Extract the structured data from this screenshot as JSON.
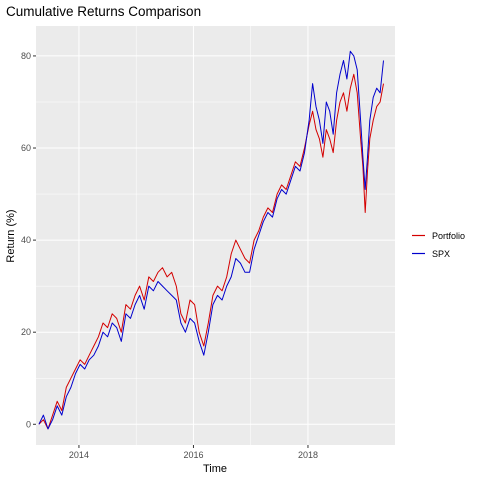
{
  "chart_data": {
    "type": "line",
    "title": "Cumulative Returns Comparison",
    "xlabel": "Time",
    "ylabel": "Return (%)",
    "xlim": [
      2013.25,
      2019.52
    ],
    "ylim": [
      -4.5,
      86.5
    ],
    "x_ticks": [
      2014,
      2016,
      2018
    ],
    "x_tick_labels": [
      "2014",
      "2016",
      "2018"
    ],
    "y_ticks": [
      0,
      20,
      40,
      60,
      80
    ],
    "y_tick_labels": [
      "0",
      "20",
      "40",
      "60",
      "80"
    ],
    "grid": true,
    "legend_position": "right",
    "x": [
      2013.3,
      2013.38,
      2013.46,
      2013.54,
      2013.62,
      2013.7,
      2013.78,
      2013.86,
      2013.94,
      2014.02,
      2014.1,
      2014.18,
      2014.26,
      2014.34,
      2014.42,
      2014.5,
      2014.58,
      2014.66,
      2014.74,
      2014.82,
      2014.9,
      2014.98,
      2015.06,
      2015.14,
      2015.22,
      2015.3,
      2015.38,
      2015.46,
      2015.54,
      2015.62,
      2015.7,
      2015.78,
      2015.86,
      2015.94,
      2016.02,
      2016.1,
      2016.18,
      2016.26,
      2016.34,
      2016.42,
      2016.5,
      2016.58,
      2016.66,
      2016.74,
      2016.82,
      2016.9,
      2016.98,
      2017.06,
      2017.14,
      2017.22,
      2017.3,
      2017.38,
      2017.46,
      2017.54,
      2017.62,
      2017.7,
      2017.78,
      2017.86,
      2017.94,
      2018.02,
      2018.08,
      2018.14,
      2018.2,
      2018.26,
      2018.32,
      2018.38,
      2018.44,
      2018.5,
      2018.56,
      2018.62,
      2018.68,
      2018.74,
      2018.8,
      2018.86,
      2018.92,
      2018.96,
      2019.0,
      2019.04,
      2019.08,
      2019.14,
      2019.2,
      2019.26,
      2019.32
    ],
    "series": [
      {
        "name": "Portfolio",
        "color": "#d40000",
        "values": [
          0,
          1,
          -1,
          2,
          5,
          3,
          8,
          10,
          12,
          14,
          13,
          15,
          17,
          19,
          22,
          21,
          24,
          23,
          20,
          26,
          25,
          28,
          30,
          27,
          32,
          31,
          33,
          34,
          32,
          33,
          30,
          24,
          22,
          27,
          26,
          20,
          17,
          22,
          28,
          30,
          29,
          32,
          37,
          40,
          38,
          36,
          35,
          40,
          42,
          45,
          47,
          46,
          50,
          52,
          51,
          54,
          57,
          56,
          60,
          65,
          68,
          64,
          62,
          58,
          64,
          62,
          59,
          66,
          70,
          72,
          68,
          73,
          76,
          72,
          62,
          56,
          46,
          55,
          62,
          66,
          69,
          70,
          74
        ]
      },
      {
        "name": "SPX",
        "color": "#0000cd",
        "values": [
          0,
          2,
          -1,
          1,
          4,
          2,
          6,
          8,
          11,
          13,
          12,
          14,
          15,
          17,
          20,
          19,
          22,
          21,
          18,
          24,
          23,
          26,
          28,
          25,
          30,
          29,
          31,
          30,
          29,
          28,
          27,
          22,
          20,
          23,
          22,
          18,
          15,
          20,
          26,
          28,
          27,
          30,
          32,
          36,
          35,
          33,
          33,
          38,
          41,
          44,
          46,
          45,
          49,
          51,
          50,
          53,
          56,
          55,
          59,
          66,
          74,
          69,
          66,
          61,
          70,
          68,
          63,
          72,
          76,
          79,
          75,
          81,
          80,
          77,
          66,
          58,
          51,
          58,
          66,
          71,
          73,
          72,
          79
        ]
      }
    ]
  }
}
